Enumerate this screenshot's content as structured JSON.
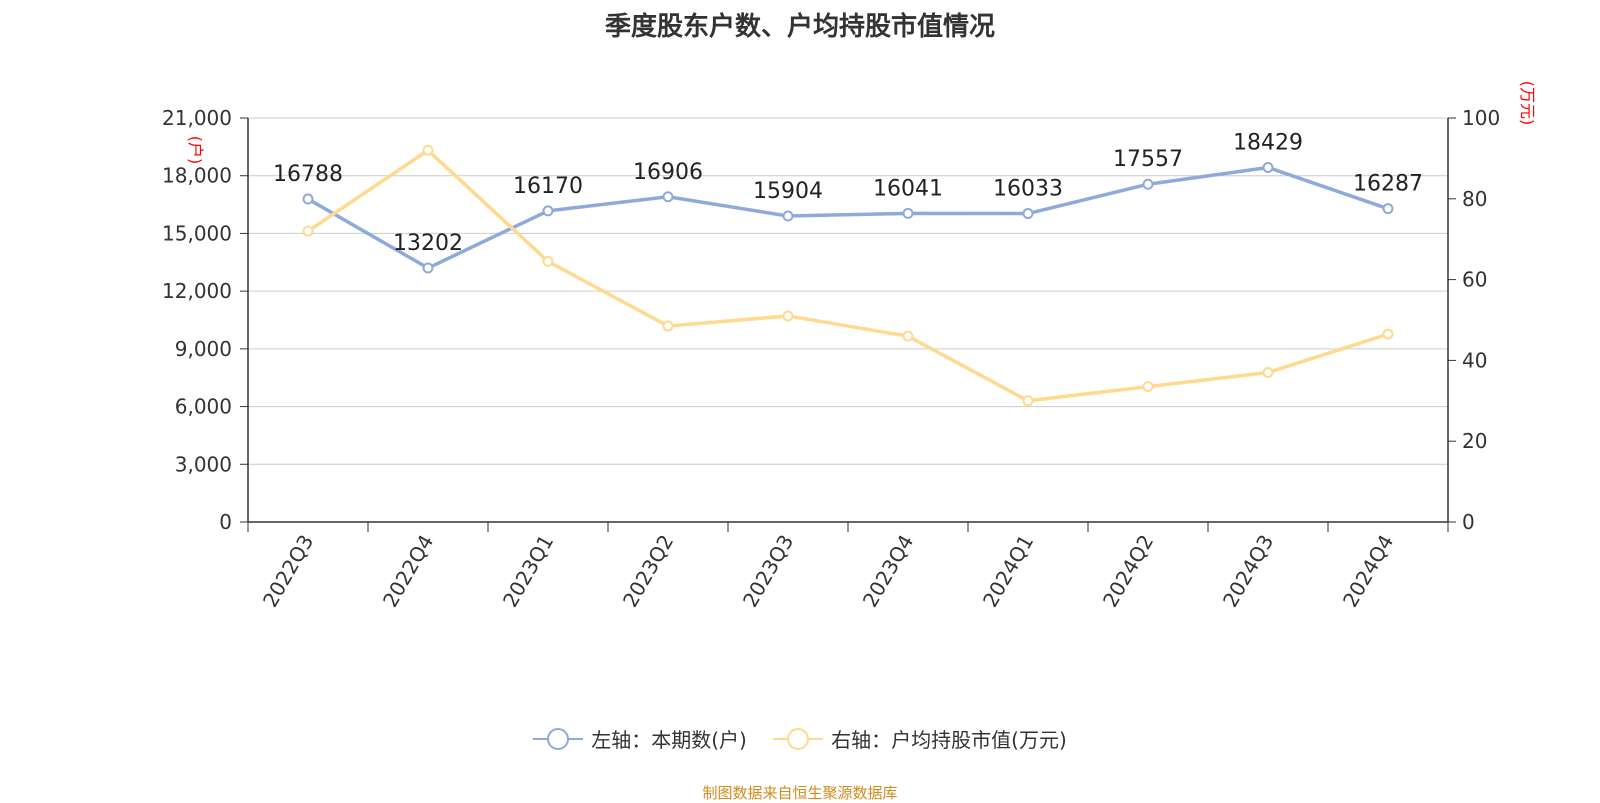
{
  "title": "季度股东户数、户均持股市值情况",
  "source": "制图数据来自恒生聚源数据库",
  "colors": {
    "left": "#8eaadb",
    "right": "#ffd98e",
    "grid": "#cccccc",
    "axis": "#333333",
    "unit": "#ff0000"
  },
  "chart_data": {
    "type": "line",
    "categories": [
      "2022Q3",
      "2022Q4",
      "2023Q1",
      "2023Q2",
      "2023Q3",
      "2023Q4",
      "2024Q1",
      "2024Q2",
      "2024Q3",
      "2024Q4"
    ],
    "left_axis": {
      "unit": "(户)",
      "ylim": [
        0,
        21000
      ],
      "ticks": [
        "0",
        "3,000",
        "6,000",
        "9,000",
        "12,000",
        "15,000",
        "18,000",
        "21,000"
      ]
    },
    "right_axis": {
      "unit": "(万元)",
      "ylim": [
        0,
        100
      ],
      "ticks": [
        "0",
        "20",
        "40",
        "60",
        "80",
        "100"
      ]
    },
    "grid": true,
    "legend_position": "bottom",
    "series": [
      {
        "name": "左轴：本期数(户)",
        "axis": "left",
        "values": [
          16788,
          13202,
          16170,
          16906,
          15904,
          16041,
          16033,
          17557,
          18429,
          16287
        ],
        "labels": [
          "16788",
          "13202",
          "16170",
          "16906",
          "15904",
          "16041",
          "16033",
          "17557",
          "18429",
          "16287"
        ]
      },
      {
        "name": "右轴：户均持股市值(万元)",
        "axis": "right",
        "values": [
          72,
          92,
          64.5,
          48.5,
          51,
          46,
          30,
          33.5,
          37,
          46.5
        ]
      }
    ]
  }
}
